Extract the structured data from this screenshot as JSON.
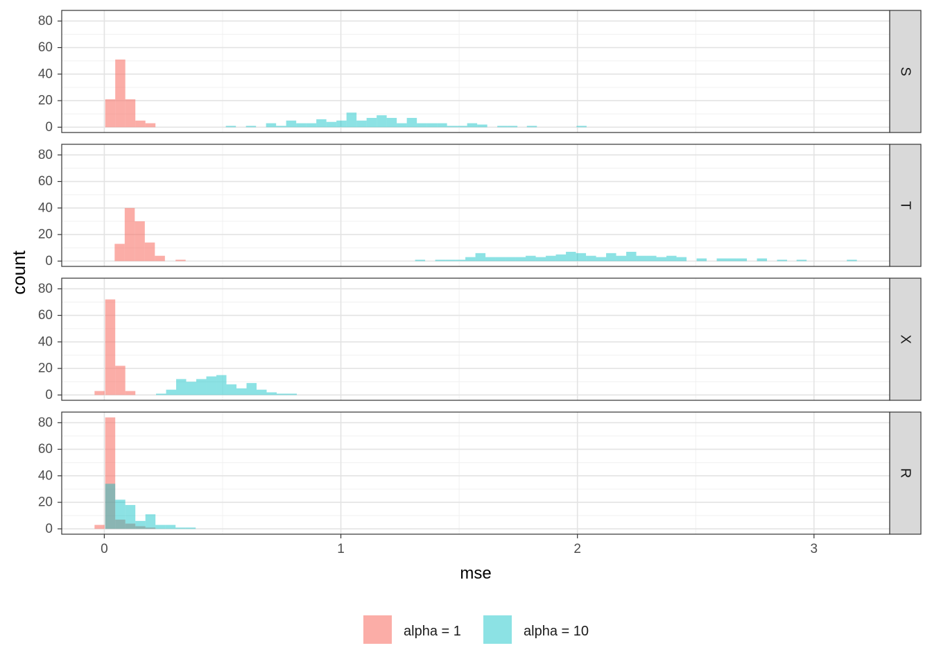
{
  "chart_data": {
    "type": "histogram",
    "layout": "faceted rows (4 panels, shared x axis)",
    "xlabel": "mse",
    "ylabel": "count",
    "xlim": [
      -0.18,
      3.32
    ],
    "ylim": [
      -4,
      88
    ],
    "x_ticks": [
      0,
      1,
      2,
      3
    ],
    "x_tick_labels": [
      "0",
      "1",
      "2",
      "3"
    ],
    "y_ticks": [
      0,
      20,
      40,
      60,
      80
    ],
    "y_tick_labels": [
      "0",
      "20",
      "40",
      "60",
      "80"
    ],
    "bin_width": 0.0425,
    "grid": true,
    "legend_position": "bottom",
    "series": [
      {
        "name": "alpha = 1",
        "color": "#F8766D",
        "opacity": 0.6
      },
      {
        "name": "alpha = 10",
        "color": "#00BFC4",
        "opacity": 0.45
      }
    ],
    "legend_labels": [
      "alpha = 1",
      "alpha = 10"
    ],
    "panels": [
      {
        "label": "S",
        "series": [
          {
            "bins": [
              [
                0.025,
                21
              ],
              [
                0.0675,
                51
              ],
              [
                0.11,
                21
              ],
              [
                0.1525,
                5
              ],
              [
                0.195,
                3
              ]
            ]
          },
          {
            "bins": [
              [
                0.535,
                1
              ],
              [
                0.62,
                1
              ],
              [
                0.705,
                3
              ],
              [
                0.7475,
                1
              ],
              [
                0.79,
                5
              ],
              [
                0.8325,
                3
              ],
              [
                0.875,
                3
              ],
              [
                0.9175,
                6
              ],
              [
                0.96,
                4
              ],
              [
                1.0025,
                5
              ],
              [
                1.045,
                11
              ],
              [
                1.0875,
                5
              ],
              [
                1.13,
                7
              ],
              [
                1.1725,
                9
              ],
              [
                1.215,
                7
              ],
              [
                1.2575,
                3
              ],
              [
                1.3,
                7
              ],
              [
                1.3425,
                3
              ],
              [
                1.385,
                3
              ],
              [
                1.4275,
                3
              ],
              [
                1.47,
                1
              ],
              [
                1.5125,
                1
              ],
              [
                1.555,
                3
              ],
              [
                1.5975,
                2
              ],
              [
                1.6825,
                1
              ],
              [
                1.725,
                1
              ],
              [
                1.8075,
                1
              ],
              [
                2.0175,
                1
              ]
            ]
          }
        ]
      },
      {
        "label": "T",
        "series": [
          {
            "bins": [
              [
                0.065,
                13
              ],
              [
                0.1075,
                40
              ],
              [
                0.15,
                30
              ],
              [
                0.1925,
                14
              ],
              [
                0.235,
                4
              ],
              [
                0.3225,
                1
              ]
            ]
          },
          {
            "bins": [
              [
                1.335,
                1
              ],
              [
                1.42,
                1
              ],
              [
                1.4625,
                1
              ],
              [
                1.505,
                1
              ],
              [
                1.5475,
                3
              ],
              [
                1.59,
                6
              ],
              [
                1.6325,
                3
              ],
              [
                1.675,
                3
              ],
              [
                1.7175,
                3
              ],
              [
                1.76,
                3
              ],
              [
                1.8025,
                4
              ],
              [
                1.845,
                3
              ],
              [
                1.8875,
                4
              ],
              [
                1.93,
                5
              ],
              [
                1.9725,
                7
              ],
              [
                2.015,
                6
              ],
              [
                2.0575,
                4
              ],
              [
                2.1,
                3
              ],
              [
                2.1425,
                6
              ],
              [
                2.185,
                4
              ],
              [
                2.2275,
                7
              ],
              [
                2.27,
                4
              ],
              [
                2.3125,
                4
              ],
              [
                2.355,
                3
              ],
              [
                2.3975,
                4
              ],
              [
                2.44,
                3
              ],
              [
                2.525,
                2
              ],
              [
                2.61,
                2
              ],
              [
                2.6525,
                2
              ],
              [
                2.695,
                2
              ],
              [
                2.78,
                2
              ],
              [
                2.865,
                1
              ],
              [
                2.9475,
                1
              ],
              [
                3.16,
                1
              ]
            ]
          }
        ]
      },
      {
        "label": "X",
        "series": [
          {
            "bins": [
              [
                -0.02,
                3
              ],
              [
                0.025,
                72
              ],
              [
                0.0675,
                22
              ],
              [
                0.11,
                3
              ]
            ]
          },
          {
            "bins": [
              [
                0.24,
                1
              ],
              [
                0.2825,
                4
              ],
              [
                0.325,
                12
              ],
              [
                0.3675,
                10
              ],
              [
                0.41,
                12
              ],
              [
                0.4525,
                14
              ],
              [
                0.495,
                15
              ],
              [
                0.5375,
                8
              ],
              [
                0.58,
                5
              ],
              [
                0.6225,
                9
              ],
              [
                0.665,
                4
              ],
              [
                0.7075,
                2
              ],
              [
                0.75,
                1
              ],
              [
                0.7925,
                1
              ]
            ]
          }
        ]
      },
      {
        "label": "R",
        "series": [
          {
            "bins": [
              [
                -0.02,
                3
              ],
              [
                0.025,
                84
              ],
              [
                0.0675,
                7
              ],
              [
                0.11,
                4
              ],
              [
                0.1525,
                2
              ],
              [
                0.195,
                1
              ]
            ]
          },
          {
            "bins": [
              [
                0.025,
                34
              ],
              [
                0.0675,
                22
              ],
              [
                0.11,
                18
              ],
              [
                0.1525,
                6
              ],
              [
                0.195,
                11
              ],
              [
                0.2375,
                3
              ],
              [
                0.28,
                3
              ],
              [
                0.3225,
                1
              ],
              [
                0.365,
                1
              ]
            ]
          }
        ]
      }
    ]
  }
}
